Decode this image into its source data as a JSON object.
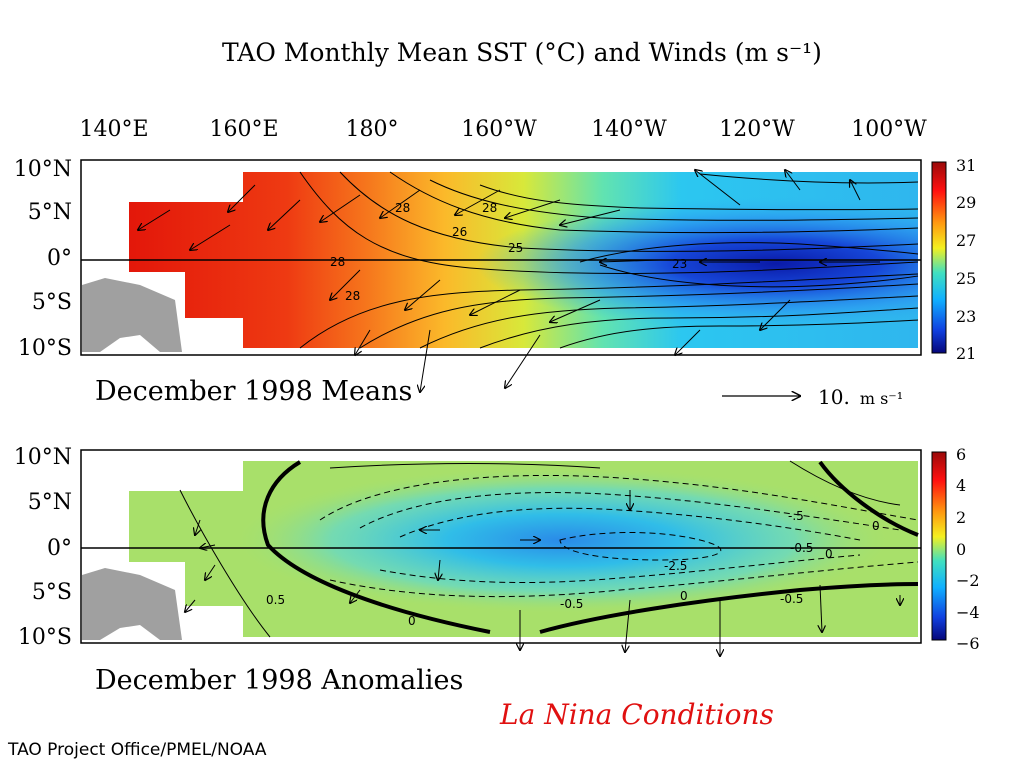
{
  "title": "TAO Monthly Mean SST (°C) and Winds (m s⁻¹)",
  "longitude_labels": [
    "140°E",
    "160°E",
    "180°",
    "160°W",
    "140°W",
    "120°W",
    "100°W"
  ],
  "latitude_labels": [
    "10°N",
    "5°N",
    "0°",
    "5°S",
    "10°S"
  ],
  "means_panel": {
    "caption": "December 1998 Means",
    "colorbar_ticks": [
      "31",
      "29",
      "27",
      "25",
      "23",
      "21"
    ],
    "contour_labels": [
      "28",
      "28",
      "28",
      "26",
      "25",
      "23",
      "28"
    ],
    "reference_vector_label": "10.",
    "reference_vector_unit": "m s⁻¹"
  },
  "anomaly_panel": {
    "caption": "December 1998 Anomalies",
    "colorbar_ticks": [
      "6",
      "4",
      "2",
      "0",
      "−2",
      "−4",
      "−6"
    ],
    "contour_labels": [
      "0",
      "-0.5",
      "0",
      "-.5",
      "-2.5",
      "-0.5",
      "0",
      "-0.5",
      "0.5",
      "0"
    ]
  },
  "conditions_label": "La Nina Conditions",
  "credit": "TAO Project Office/PMEL/NOAA",
  "colors": {
    "sst_warm": "#e3170a",
    "sst_cold": "#0a1aa8",
    "anomaly_neutral": "#a8e06a",
    "land": "#a0a0a0",
    "conditions_text": "#e01010"
  },
  "chart_data": [
    {
      "type": "heatmap",
      "title": "December 1998 Means",
      "variable": "SST (°C) with wind vectors (m s⁻¹)",
      "x_ticks": [
        "140°E",
        "160°E",
        "180°",
        "160°W",
        "140°W",
        "120°W",
        "100°W"
      ],
      "y_ticks": [
        "10°N",
        "5°N",
        "0°",
        "5°S",
        "10°S"
      ],
      "colorbar_range": [
        21,
        31
      ],
      "contour_values": [
        23,
        25,
        26,
        28
      ],
      "reference_vector": 10
    },
    {
      "type": "heatmap",
      "title": "December 1998 Anomalies",
      "variable": "SST anomaly (°C) with wind anomaly vectors",
      "x_ticks": [
        "140°E",
        "160°E",
        "180°",
        "160°W",
        "140°W",
        "120°W",
        "100°W"
      ],
      "y_ticks": [
        "10°N",
        "5°N",
        "0°",
        "5°S",
        "10°S"
      ],
      "colorbar_range": [
        -6,
        6
      ],
      "contour_values": [
        -2.5,
        -0.5,
        0,
        0.5
      ],
      "minimum_anomaly_near": "140°W, 0°"
    }
  ]
}
